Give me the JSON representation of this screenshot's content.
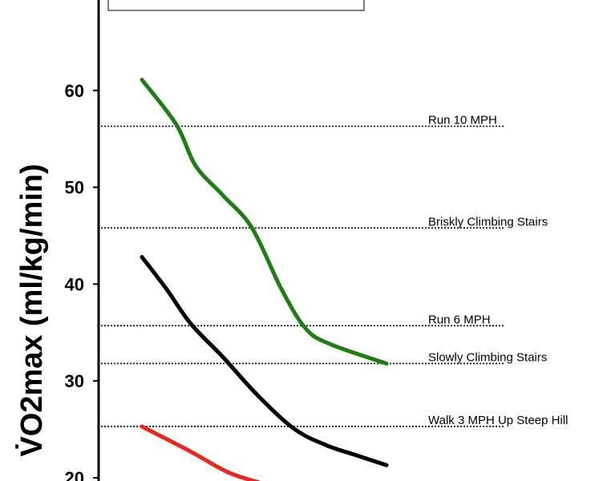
{
  "chart_data": {
    "type": "line",
    "ylabel": "V̇O2max (ml/kg/min)",
    "ylim": [
      20,
      70
    ],
    "yticks": [
      20,
      30,
      40,
      50,
      60
    ],
    "xlim": [
      0,
      1
    ],
    "grid": false,
    "reference_lines": [
      {
        "label": "Run 10 MPH",
        "value": 56.3
      },
      {
        "label": "Briskly Climbing Stairs",
        "value": 45.8
      },
      {
        "label": "Run 6 MPH",
        "value": 35.7
      },
      {
        "label": "Slowly Climbing Stairs",
        "value": 31.8
      },
      {
        "label": "Walk 3 MPH Up Steep Hill",
        "value": 25.3
      }
    ],
    "series": [
      {
        "color": "#1e7d14",
        "x": [
          0.0,
          0.14,
          0.22,
          0.33,
          0.45,
          0.57,
          0.67,
          0.77,
          1.0
        ],
        "y": [
          61.1,
          56.5,
          52.2,
          49.2,
          45.8,
          39.5,
          35.4,
          33.8,
          31.8
        ]
      },
      {
        "color": "#000000",
        "x": [
          0.0,
          0.1,
          0.2,
          0.33,
          0.47,
          0.62,
          0.75,
          0.88,
          1.0
        ],
        "y": [
          42.8,
          39.5,
          35.9,
          32.5,
          28.6,
          25.1,
          23.4,
          22.3,
          21.3
        ]
      },
      {
        "color": "#e8281e",
        "x": [
          0.0,
          0.2,
          0.35,
          0.48
        ],
        "y": [
          25.3,
          22.7,
          20.6,
          19.5
        ]
      }
    ]
  }
}
